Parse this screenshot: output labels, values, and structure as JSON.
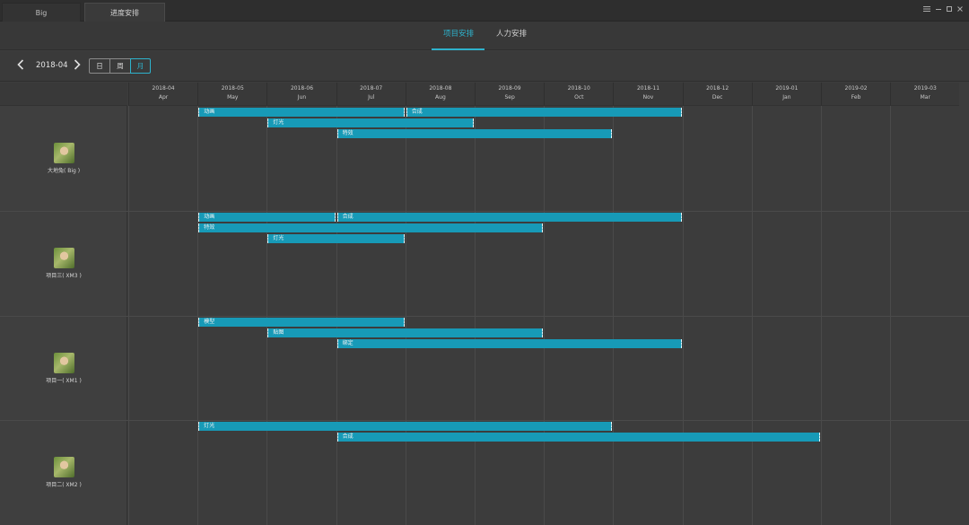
{
  "window": {
    "tabs": [
      {
        "label": "Big"
      },
      {
        "label": "进度安排"
      }
    ],
    "controls": {
      "menu_icon": "menu-icon",
      "minimize_icon": "minimize-icon",
      "maximize_icon": "maximize-icon",
      "close_icon": "close-icon"
    }
  },
  "view_tabs": [
    {
      "label": "项目安排",
      "active": true
    },
    {
      "label": "人力安排",
      "active": false
    }
  ],
  "toolbar": {
    "prev_icon": "chevron-left-icon",
    "next_icon": "chevron-right-icon",
    "current_month": "2018-04",
    "scale_options": [
      "日",
      "周",
      "月"
    ],
    "selected_scale": "月"
  },
  "colors": {
    "accent": "#2eb2cc",
    "bar": "#179ab7",
    "background": "#3c3c3c"
  },
  "timeline": {
    "months": [
      {
        "ym": "2018-04",
        "abbr": "Apr"
      },
      {
        "ym": "2018-05",
        "abbr": "May"
      },
      {
        "ym": "2018-06",
        "abbr": "Jun"
      },
      {
        "ym": "2018-07",
        "abbr": "Jul"
      },
      {
        "ym": "2018-08",
        "abbr": "Aug"
      },
      {
        "ym": "2018-09",
        "abbr": "Sep"
      },
      {
        "ym": "2018-10",
        "abbr": "Oct"
      },
      {
        "ym": "2018-11",
        "abbr": "Nov"
      },
      {
        "ym": "2018-12",
        "abbr": "Dec"
      },
      {
        "ym": "2019-01",
        "abbr": "Jan"
      },
      {
        "ym": "2019-02",
        "abbr": "Feb"
      },
      {
        "ym": "2019-03",
        "abbr": "Mar"
      }
    ]
  },
  "rows": [
    {
      "name": "大地兔( Big )",
      "avatar_icon": "avatar-image",
      "tasks": [
        {
          "label": "动画",
          "start": "2018-05",
          "end": "2018-07"
        },
        {
          "label": "合成",
          "start": "2018-08",
          "end": "2018-11"
        },
        {
          "label": "灯光",
          "start": "2018-06",
          "end": "2018-08"
        },
        {
          "label": "特效",
          "start": "2018-07",
          "end": "2018-10"
        }
      ]
    },
    {
      "name": "项目三( XM3 )",
      "avatar_icon": "avatar-image",
      "tasks": [
        {
          "label": "动画",
          "start": "2018-05",
          "end": "2018-06"
        },
        {
          "label": "合成",
          "start": "2018-07",
          "end": "2018-11"
        },
        {
          "label": "特效",
          "start": "2018-05",
          "end": "2018-09"
        },
        {
          "label": "灯光",
          "start": "2018-06",
          "end": "2018-07"
        }
      ]
    },
    {
      "name": "项目一( XM1 )",
      "avatar_icon": "avatar-image",
      "tasks": [
        {
          "label": "模型",
          "start": "2018-05",
          "end": "2018-07"
        },
        {
          "label": "贴图",
          "start": "2018-06",
          "end": "2018-09"
        },
        {
          "label": "绑定",
          "start": "2018-07",
          "end": "2018-11"
        }
      ]
    },
    {
      "name": "项目二( XM2 )",
      "avatar_icon": "avatar-image",
      "tasks": [
        {
          "label": "灯光",
          "start": "2018-05",
          "end": "2018-10"
        },
        {
          "label": "合成",
          "start": "2018-07",
          "end": "2019-01"
        }
      ]
    }
  ]
}
